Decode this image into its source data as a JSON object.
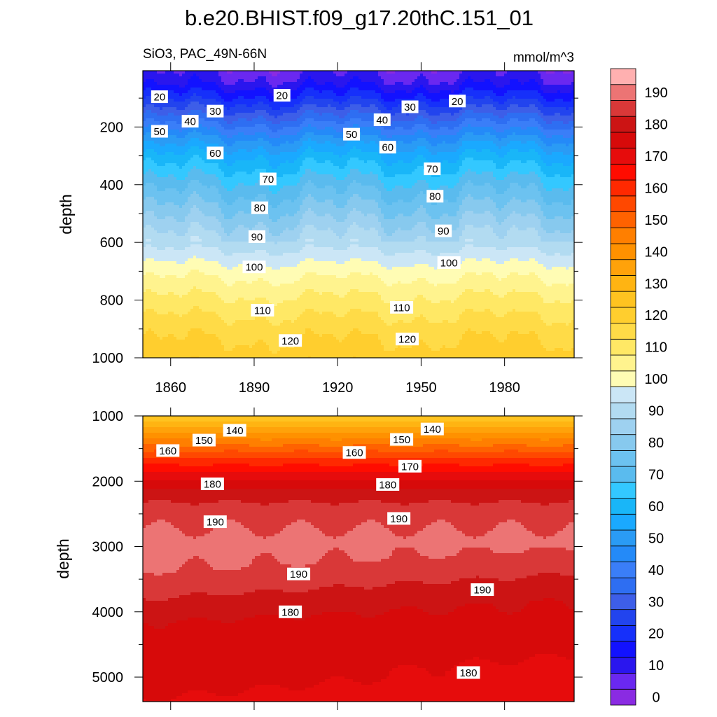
{
  "title": "b.e20.BHIST.f09_g17.20thC.151_01",
  "variable_label": "SiO3, PAC_49N-66N",
  "units_label": "mmol/m^3",
  "colorbar": {
    "levels": [
      0,
      5,
      10,
      15,
      20,
      25,
      30,
      35,
      40,
      45,
      50,
      55,
      60,
      65,
      70,
      75,
      80,
      85,
      90,
      95,
      100,
      105,
      110,
      115,
      120,
      125,
      130,
      135,
      140,
      145,
      150,
      155,
      160,
      165,
      170,
      175,
      180,
      185,
      190,
      195
    ],
    "labels": [
      "0",
      "10",
      "20",
      "30",
      "40",
      "50",
      "60",
      "70",
      "80",
      "90",
      "100",
      "110",
      "120",
      "130",
      "140",
      "150",
      "160",
      "170",
      "180",
      "190"
    ],
    "colors": [
      "#8a2be2",
      "#6a28f0",
      "#2a16ee",
      "#1212ff",
      "#1630fa",
      "#2244ee",
      "#3d5ee8",
      "#2e6ef2",
      "#3a7ef8",
      "#248af8",
      "#2a9bf5",
      "#1aa9ff",
      "#19b6f8",
      "#33c8ff",
      "#5abbee",
      "#6cc2f0",
      "#87c9ee",
      "#9ed1f0",
      "#b2dbf1",
      "#cbe6f6",
      "#fffcb4",
      "#fff38e",
      "#ffe865",
      "#ffdb47",
      "#ffce2e",
      "#ffc320",
      "#ffb412",
      "#ffa20a",
      "#ff9100",
      "#ff7f00",
      "#ff6200",
      "#ff4800",
      "#ff2900",
      "#ff0c00",
      "#e60c0c",
      "#d70a0a",
      "#cc1414",
      "#d93838",
      "#ec7474",
      "#ffb0b0"
    ]
  },
  "chart_data": [
    {
      "type": "heatmap",
      "panel": "upper",
      "title": "SiO3, PAC_49N-66N",
      "ylabel": "depth",
      "xlabel": "",
      "x_ticks": [
        1860,
        1890,
        1920,
        1950,
        1980
      ],
      "x_tick_labels": [
        "1860",
        "1890",
        "1920",
        "1950",
        "1980"
      ],
      "xlim": [
        1850,
        2005
      ],
      "y_ticks": [
        200,
        400,
        600,
        800,
        1000
      ],
      "y_tick_labels": [
        "200",
        "400",
        "600",
        "800",
        "1000"
      ],
      "ylim": [
        5,
        1000
      ],
      "depth_profile": {
        "depths": [
          5,
          50,
          100,
          150,
          200,
          250,
          300,
          400,
          500,
          600,
          700,
          800,
          900,
          1000
        ],
        "values": [
          8,
          13,
          22,
          32,
          42,
          52,
          60,
          72,
          82,
          92,
          103,
          111,
          118,
          123
        ]
      },
      "contour_labels": [
        {
          "text": "20",
          "year": 1856,
          "depth": 95
        },
        {
          "text": "20",
          "year": 1900,
          "depth": 90
        },
        {
          "text": "20",
          "year": 1963,
          "depth": 110
        },
        {
          "text": "30",
          "year": 1876,
          "depth": 145
        },
        {
          "text": "30",
          "year": 1946,
          "depth": 130
        },
        {
          "text": "40",
          "year": 1867,
          "depth": 180
        },
        {
          "text": "40",
          "year": 1936,
          "depth": 175
        },
        {
          "text": "50",
          "year": 1856,
          "depth": 215
        },
        {
          "text": "50",
          "year": 1925,
          "depth": 225
        },
        {
          "text": "60",
          "year": 1876,
          "depth": 290
        },
        {
          "text": "60",
          "year": 1938,
          "depth": 270
        },
        {
          "text": "70",
          "year": 1895,
          "depth": 380
        },
        {
          "text": "70",
          "year": 1954,
          "depth": 345
        },
        {
          "text": "80",
          "year": 1892,
          "depth": 480
        },
        {
          "text": "80",
          "year": 1955,
          "depth": 440
        },
        {
          "text": "90",
          "year": 1891,
          "depth": 580
        },
        {
          "text": "90",
          "year": 1958,
          "depth": 560
        },
        {
          "text": "100",
          "year": 1890,
          "depth": 685
        },
        {
          "text": "100",
          "year": 1960,
          "depth": 670
        },
        {
          "text": "110",
          "year": 1893,
          "depth": 835
        },
        {
          "text": "110",
          "year": 1943,
          "depth": 825
        },
        {
          "text": "120",
          "year": 1903,
          "depth": 940
        },
        {
          "text": "120",
          "year": 1945,
          "depth": 935
        }
      ]
    },
    {
      "type": "heatmap",
      "panel": "lower",
      "ylabel": "depth",
      "y_ticks": [
        1000,
        2000,
        3000,
        4000,
        5000
      ],
      "y_tick_labels": [
        "1000",
        "2000",
        "3000",
        "4000",
        "5000"
      ],
      "ylim": [
        1000,
        5375
      ],
      "xlim": [
        1850,
        2005
      ],
      "depth_profile": {
        "depths": [
          1000,
          1300,
          1600,
          1900,
          2200,
          2600,
          3000,
          3400,
          3800,
          4200,
          4600,
          5000,
          5375
        ],
        "values": [
          126,
          142,
          158,
          172,
          183,
          189.5,
          191,
          190,
          185,
          180,
          179,
          178.5,
          176
        ]
      },
      "contour_labels": [
        {
          "text": "140",
          "year": 1883,
          "depth": 1220
        },
        {
          "text": "140",
          "year": 1954,
          "depth": 1200
        },
        {
          "text": "150",
          "year": 1872,
          "depth": 1370
        },
        {
          "text": "150",
          "year": 1943,
          "depth": 1360
        },
        {
          "text": "160",
          "year": 1859,
          "depth": 1530
        },
        {
          "text": "160",
          "year": 1926,
          "depth": 1560
        },
        {
          "text": "170",
          "year": 1946,
          "depth": 1770
        },
        {
          "text": "180",
          "year": 1875,
          "depth": 2040
        },
        {
          "text": "180",
          "year": 1938,
          "depth": 2050
        },
        {
          "text": "190",
          "year": 1876,
          "depth": 2620
        },
        {
          "text": "190",
          "year": 1942,
          "depth": 2570
        },
        {
          "text": "190",
          "year": 1906,
          "depth": 3420
        },
        {
          "text": "190",
          "year": 1972,
          "depth": 3660
        },
        {
          "text": "180",
          "year": 1903,
          "depth": 4000
        },
        {
          "text": "180",
          "year": 1967,
          "depth": 4930
        }
      ]
    }
  ]
}
